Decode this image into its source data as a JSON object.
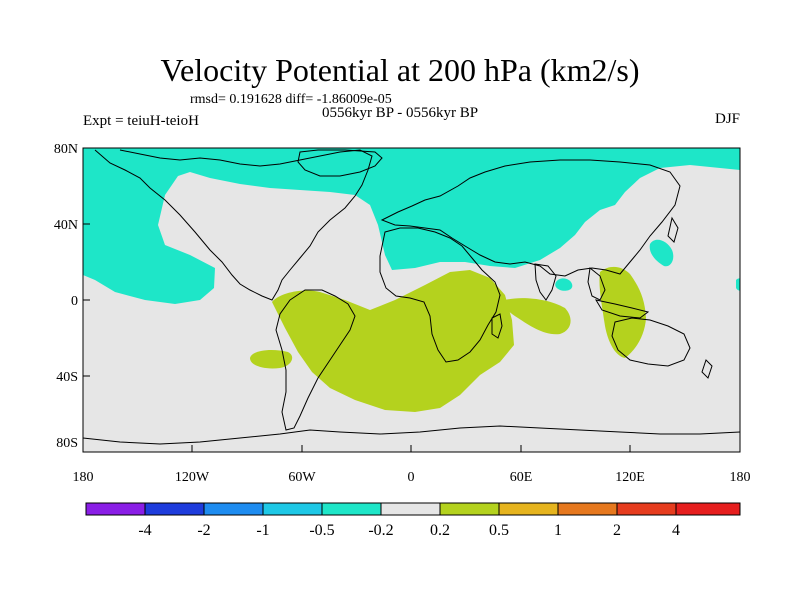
{
  "title": "Velocity Potential at 200 hPa (km2/s)",
  "subtitle": "rmsd= 0.191628 diff= -1.86009e-05",
  "left_label": "Expt = teiuH-teioH",
  "center_label": "0556kyr BP - 0556kyr BP",
  "right_label": "DJF",
  "lat_ticks": [
    "80N",
    "40N",
    "0",
    "40S",
    "80S"
  ],
  "lon_ticks": [
    "180",
    "120W",
    "60W",
    "0",
    "60E",
    "120E",
    "180"
  ],
  "colorbar": {
    "labels": [
      "-4",
      "-2",
      "-1",
      "-0.5",
      "-0.2",
      "0.2",
      "0.5",
      "1",
      "2",
      "4"
    ],
    "colors": [
      "#8a1ee6",
      "#1e3cdc",
      "#1e8cf0",
      "#1ec8e6",
      "#1ee6c8",
      "#e6e6e6",
      "#b4d21e",
      "#e6b41e",
      "#e6781e",
      "#e63c1e",
      "#e61e1e"
    ]
  },
  "colors": {
    "negative_fill": "#1ee6c8",
    "positive_fill": "#b4d21e",
    "neutral_fill": "#e6e6e6",
    "coastline": "#000000"
  }
}
